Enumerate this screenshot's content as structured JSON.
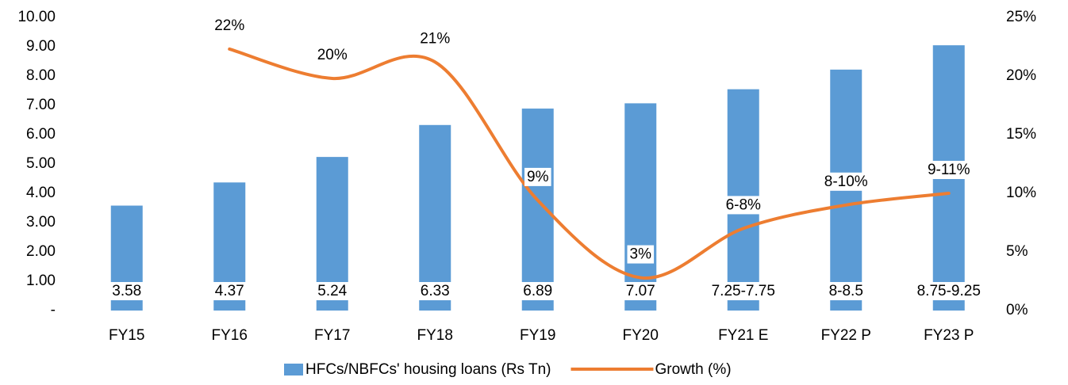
{
  "chart_data": {
    "type": "bar_line",
    "categories": [
      "FY15",
      "FY16",
      "FY17",
      "FY18",
      "FY19",
      "FY20",
      "FY21 E",
      "FY22 P",
      "FY23 P"
    ],
    "series": [
      {
        "name": "HFCs/NBFCs' housing loans (Rs Tn)",
        "color": "#5b9bd5",
        "type": "bar",
        "values": [
          3.58,
          4.37,
          5.24,
          6.33,
          6.89,
          7.07,
          7.55,
          8.22,
          9.05
        ],
        "value_labels": [
          "3.58",
          "4.37",
          "5.24",
          "6.33",
          "6.89",
          "7.07",
          "7.25-7.75",
          "8-8.5",
          "8.75-9.25"
        ]
      },
      {
        "name": "Growth (%)",
        "color": "#ed7d31",
        "type": "line",
        "axis": "y2",
        "values": [
          null,
          22.3,
          19.8,
          21.2,
          9.4,
          2.8,
          7,
          9,
          10
        ],
        "value_labels": [
          null,
          "22%",
          "20%",
          "21%",
          "9%",
          "3%",
          "6-8%",
          "8-10%",
          "9-11%"
        ]
      }
    ],
    "ylim": [
      0,
      10
    ],
    "yticks": [
      {
        "value": 0,
        "label": "-"
      },
      {
        "value": 1,
        "label": "1.00"
      },
      {
        "value": 2,
        "label": "2.00"
      },
      {
        "value": 3,
        "label": "3.00"
      },
      {
        "value": 4,
        "label": "4.00"
      },
      {
        "value": 5,
        "label": "5.00"
      },
      {
        "value": 6,
        "label": "6.00"
      },
      {
        "value": 7,
        "label": "7.00"
      },
      {
        "value": 8,
        "label": "8.00"
      },
      {
        "value": 9,
        "label": "9.00"
      },
      {
        "value": 10,
        "label": "10.00"
      }
    ],
    "y2lim": [
      0,
      25
    ],
    "y2ticks": [
      {
        "value": 0,
        "label": "0%"
      },
      {
        "value": 5,
        "label": "5%"
      },
      {
        "value": 10,
        "label": "10%"
      },
      {
        "value": 15,
        "label": "15%"
      },
      {
        "value": 20,
        "label": "20%"
      },
      {
        "value": 25,
        "label": "25%"
      }
    ],
    "legend": "bottom"
  }
}
